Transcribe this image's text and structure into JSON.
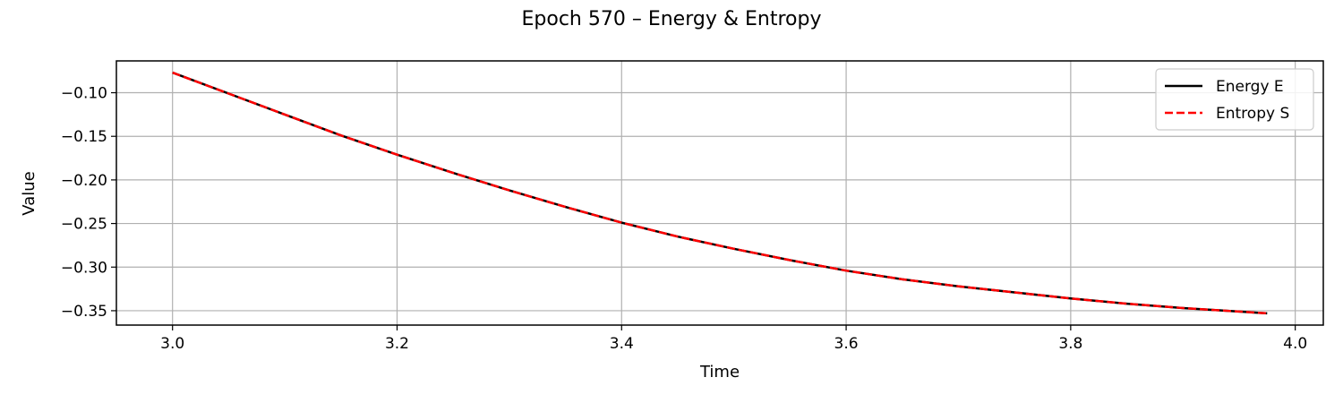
{
  "chart_data": {
    "type": "line",
    "title": "Epoch 570 – Energy & Entropy",
    "xlabel": "Time",
    "ylabel": "Value",
    "xlim": [
      2.95,
      4.025
    ],
    "ylim": [
      -0.3665,
      -0.0635
    ],
    "x_ticks": [
      3.0,
      3.2,
      3.4,
      3.6,
      3.8,
      4.0
    ],
    "x_tick_labels": [
      "3.0",
      "3.2",
      "3.4",
      "3.6",
      "3.8",
      "4.0"
    ],
    "y_ticks": [
      -0.1,
      -0.15,
      -0.2,
      -0.25,
      -0.3,
      -0.35
    ],
    "y_tick_labels": [
      "−0.10",
      "−0.15",
      "−0.20",
      "−0.25",
      "−0.30",
      "−0.35"
    ],
    "grid": true,
    "legend_position": "top-right",
    "series": [
      {
        "name": "Energy E",
        "color": "#000000",
        "style": "solid",
        "x": [
          3.0,
          3.05,
          3.1,
          3.15,
          3.2,
          3.25,
          3.3,
          3.35,
          3.4,
          3.45,
          3.5,
          3.55,
          3.6,
          3.65,
          3.7,
          3.75,
          3.8,
          3.85,
          3.9,
          3.95,
          3.975
        ],
        "y": [
          -0.077,
          -0.101,
          -0.125,
          -0.149,
          -0.171,
          -0.192,
          -0.212,
          -0.231,
          -0.249,
          -0.265,
          -0.279,
          -0.292,
          -0.304,
          -0.314,
          -0.322,
          -0.329,
          -0.336,
          -0.342,
          -0.347,
          -0.351,
          -0.353
        ]
      },
      {
        "name": "Entropy S",
        "color": "#ff0000",
        "style": "dashed",
        "x": [
          3.0,
          3.05,
          3.1,
          3.15,
          3.2,
          3.25,
          3.3,
          3.35,
          3.4,
          3.45,
          3.5,
          3.55,
          3.6,
          3.65,
          3.7,
          3.75,
          3.8,
          3.85,
          3.9,
          3.95,
          3.975
        ],
        "y": [
          -0.077,
          -0.101,
          -0.125,
          -0.149,
          -0.171,
          -0.192,
          -0.212,
          -0.231,
          -0.249,
          -0.265,
          -0.279,
          -0.292,
          -0.304,
          -0.314,
          -0.322,
          -0.329,
          -0.336,
          -0.342,
          -0.347,
          -0.351,
          -0.353
        ]
      }
    ]
  }
}
